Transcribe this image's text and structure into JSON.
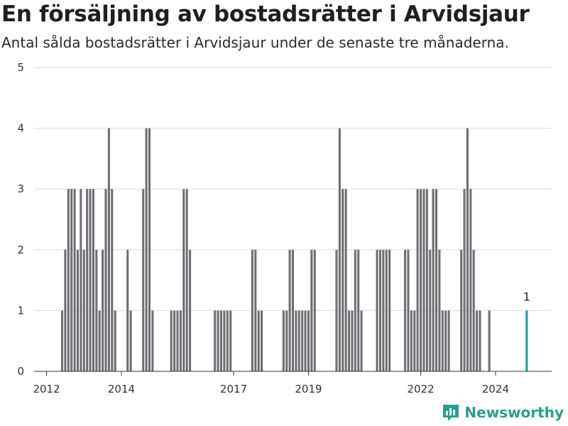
{
  "header": {
    "title": "En försäljning av bostadsrätter i Arvidsjaur",
    "subtitle": "Antal sålda bostadsrätter i Arvidsjaur under de senaste tre månaderna."
  },
  "brand": {
    "name": "Newsworthy",
    "icon": "newsworthy-logo-icon",
    "color": "#2a9d8f"
  },
  "colors": {
    "bar": "#6e6e73",
    "highlight": "#1a9e9e",
    "grid": "#dcdcdc"
  },
  "chart_data": {
    "type": "bar",
    "x_type": "date",
    "xlabel": "",
    "ylabel": "",
    "ylim": [
      0,
      5
    ],
    "yticks": [
      0,
      1,
      2,
      3,
      4,
      5
    ],
    "xlim": [
      "2011-09",
      "2025-07"
    ],
    "xticks": [
      "2012",
      "2014",
      "2017",
      "2019",
      "2022",
      "2024"
    ],
    "grid": true,
    "legend": "none",
    "highlight_last": true,
    "data_labels": [
      {
        "x": "2024-11",
        "label": "1"
      }
    ],
    "series": [
      {
        "points": [
          [
            "2012-06",
            1
          ],
          [
            "2012-07",
            2
          ],
          [
            "2012-08",
            3
          ],
          [
            "2012-09",
            3
          ],
          [
            "2012-10",
            3
          ],
          [
            "2012-11",
            2
          ],
          [
            "2012-12",
            3
          ],
          [
            "2013-01",
            2
          ],
          [
            "2013-02",
            3
          ],
          [
            "2013-03",
            3
          ],
          [
            "2013-04",
            3
          ],
          [
            "2013-05",
            2
          ],
          [
            "2013-06",
            1
          ],
          [
            "2013-07",
            2
          ],
          [
            "2013-08",
            3
          ],
          [
            "2013-09",
            4
          ],
          [
            "2013-10",
            3
          ],
          [
            "2013-11",
            1
          ],
          [
            "2014-03",
            2
          ],
          [
            "2014-04",
            1
          ],
          [
            "2014-08",
            3
          ],
          [
            "2014-09",
            4
          ],
          [
            "2014-10",
            4
          ],
          [
            "2014-11",
            1
          ],
          [
            "2015-05",
            1
          ],
          [
            "2015-06",
            1
          ],
          [
            "2015-07",
            1
          ],
          [
            "2015-08",
            1
          ],
          [
            "2015-09",
            3
          ],
          [
            "2015-10",
            3
          ],
          [
            "2015-11",
            2
          ],
          [
            "2016-07",
            1
          ],
          [
            "2016-08",
            1
          ],
          [
            "2016-09",
            1
          ],
          [
            "2016-10",
            1
          ],
          [
            "2016-11",
            1
          ],
          [
            "2016-12",
            1
          ],
          [
            "2017-07",
            2
          ],
          [
            "2017-08",
            2
          ],
          [
            "2017-09",
            1
          ],
          [
            "2017-10",
            1
          ],
          [
            "2018-05",
            1
          ],
          [
            "2018-06",
            1
          ],
          [
            "2018-07",
            2
          ],
          [
            "2018-08",
            2
          ],
          [
            "2018-09",
            1
          ],
          [
            "2018-10",
            1
          ],
          [
            "2018-11",
            1
          ],
          [
            "2018-12",
            1
          ],
          [
            "2019-01",
            1
          ],
          [
            "2019-02",
            2
          ],
          [
            "2019-03",
            2
          ],
          [
            "2019-10",
            2
          ],
          [
            "2019-11",
            4
          ],
          [
            "2019-12",
            3
          ],
          [
            "2020-01",
            3
          ],
          [
            "2020-02",
            1
          ],
          [
            "2020-03",
            1
          ],
          [
            "2020-04",
            2
          ],
          [
            "2020-05",
            2
          ],
          [
            "2020-06",
            1
          ],
          [
            "2020-11",
            2
          ],
          [
            "2020-12",
            2
          ],
          [
            "2021-01",
            2
          ],
          [
            "2021-02",
            2
          ],
          [
            "2021-03",
            2
          ],
          [
            "2021-08",
            2
          ],
          [
            "2021-09",
            2
          ],
          [
            "2021-10",
            1
          ],
          [
            "2021-11",
            1
          ],
          [
            "2021-12",
            3
          ],
          [
            "2022-01",
            3
          ],
          [
            "2022-02",
            3
          ],
          [
            "2022-03",
            3
          ],
          [
            "2022-04",
            2
          ],
          [
            "2022-05",
            3
          ],
          [
            "2022-06",
            3
          ],
          [
            "2022-07",
            2
          ],
          [
            "2022-08",
            1
          ],
          [
            "2022-09",
            1
          ],
          [
            "2022-10",
            1
          ],
          [
            "2023-02",
            2
          ],
          [
            "2023-03",
            3
          ],
          [
            "2023-04",
            4
          ],
          [
            "2023-05",
            3
          ],
          [
            "2023-06",
            2
          ],
          [
            "2023-07",
            1
          ],
          [
            "2023-08",
            1
          ],
          [
            "2023-11",
            1
          ],
          [
            "2024-11",
            1
          ]
        ]
      }
    ]
  }
}
